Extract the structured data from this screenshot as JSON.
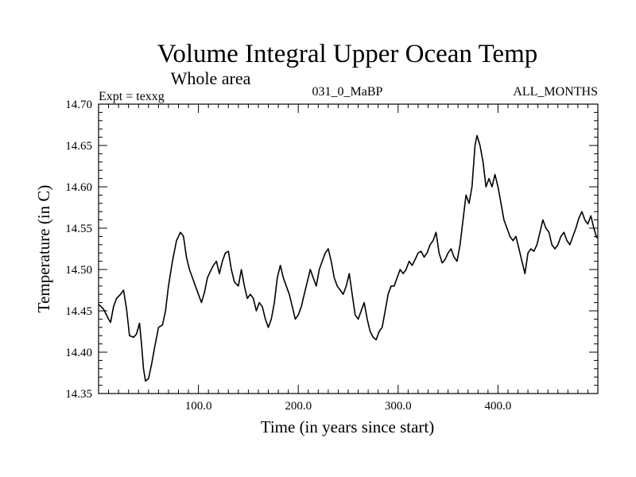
{
  "chart_data": {
    "type": "line",
    "title": "Volume Integral Upper Ocean Temp",
    "subtitle": "Whole area",
    "expt_label": "Expt = texxg",
    "center_label": "031_0_MaBP",
    "right_label": "ALL_MONTHS",
    "xlabel": "Time (in years since start)",
    "ylabel": "Temperature (in C)",
    "xlim": [
      0,
      500
    ],
    "ylim": [
      14.35,
      14.7
    ],
    "x_ticks": [
      100,
      200,
      300,
      400
    ],
    "x_tick_labels": [
      "100.0",
      "200.0",
      "300.0",
      "400.0"
    ],
    "y_ticks": [
      14.35,
      14.4,
      14.45,
      14.5,
      14.55,
      14.6,
      14.65,
      14.7
    ],
    "y_tick_labels": [
      "14.35",
      "14.40",
      "14.45",
      "14.50",
      "14.55",
      "14.60",
      "14.65",
      "14.70"
    ],
    "grid": false,
    "series": [
      {
        "name": "Volume Integral Upper Ocean Temp",
        "color": "#000000",
        "points": [
          [
            0,
            14.458
          ],
          [
            5,
            14.452
          ],
          [
            10,
            14.44
          ],
          [
            12,
            14.436
          ],
          [
            15,
            14.455
          ],
          [
            18,
            14.465
          ],
          [
            22,
            14.47
          ],
          [
            25,
            14.475
          ],
          [
            28,
            14.452
          ],
          [
            31,
            14.42
          ],
          [
            35,
            14.418
          ],
          [
            38,
            14.422
          ],
          [
            41,
            14.435
          ],
          [
            43,
            14.41
          ],
          [
            45,
            14.38
          ],
          [
            47,
            14.365
          ],
          [
            50,
            14.368
          ],
          [
            53,
            14.385
          ],
          [
            56,
            14.405
          ],
          [
            60,
            14.43
          ],
          [
            64,
            14.433
          ],
          [
            67,
            14.45
          ],
          [
            70,
            14.48
          ],
          [
            74,
            14.51
          ],
          [
            78,
            14.535
          ],
          [
            82,
            14.545
          ],
          [
            85,
            14.54
          ],
          [
            88,
            14.515
          ],
          [
            91,
            14.5
          ],
          [
            94,
            14.49
          ],
          [
            97,
            14.48
          ],
          [
            100,
            14.47
          ],
          [
            103,
            14.46
          ],
          [
            106,
            14.472
          ],
          [
            109,
            14.49
          ],
          [
            112,
            14.498
          ],
          [
            115,
            14.505
          ],
          [
            118,
            14.51
          ],
          [
            121,
            14.495
          ],
          [
            124,
            14.51
          ],
          [
            127,
            14.52
          ],
          [
            130,
            14.522
          ],
          [
            133,
            14.5
          ],
          [
            136,
            14.485
          ],
          [
            140,
            14.48
          ],
          [
            143,
            14.5
          ],
          [
            146,
            14.48
          ],
          [
            149,
            14.465
          ],
          [
            152,
            14.47
          ],
          [
            155,
            14.465
          ],
          [
            158,
            14.45
          ],
          [
            161,
            14.46
          ],
          [
            164,
            14.455
          ],
          [
            167,
            14.44
          ],
          [
            170,
            14.43
          ],
          [
            173,
            14.44
          ],
          [
            176,
            14.46
          ],
          [
            179,
            14.49
          ],
          [
            182,
            14.505
          ],
          [
            185,
            14.49
          ],
          [
            188,
            14.48
          ],
          [
            191,
            14.47
          ],
          [
            194,
            14.455
          ],
          [
            197,
            14.44
          ],
          [
            200,
            14.445
          ],
          [
            203,
            14.455
          ],
          [
            206,
            14.47
          ],
          [
            209,
            14.485
          ],
          [
            212,
            14.5
          ],
          [
            215,
            14.49
          ],
          [
            218,
            14.48
          ],
          [
            221,
            14.5
          ],
          [
            224,
            14.51
          ],
          [
            227,
            14.52
          ],
          [
            230,
            14.525
          ],
          [
            233,
            14.51
          ],
          [
            236,
            14.49
          ],
          [
            239,
            14.48
          ],
          [
            242,
            14.475
          ],
          [
            245,
            14.47
          ],
          [
            248,
            14.48
          ],
          [
            251,
            14.495
          ],
          [
            254,
            14.47
          ],
          [
            257,
            14.445
          ],
          [
            260,
            14.44
          ],
          [
            263,
            14.45
          ],
          [
            266,
            14.46
          ],
          [
            269,
            14.44
          ],
          [
            272,
            14.425
          ],
          [
            275,
            14.418
          ],
          [
            278,
            14.415
          ],
          [
            281,
            14.425
          ],
          [
            284,
            14.43
          ],
          [
            287,
            14.45
          ],
          [
            290,
            14.47
          ],
          [
            293,
            14.48
          ],
          [
            296,
            14.48
          ],
          [
            299,
            14.49
          ],
          [
            302,
            14.5
          ],
          [
            305,
            14.495
          ],
          [
            308,
            14.5
          ],
          [
            311,
            14.51
          ],
          [
            314,
            14.505
          ],
          [
            317,
            14.512
          ],
          [
            320,
            14.52
          ],
          [
            323,
            14.522
          ],
          [
            326,
            14.515
          ],
          [
            329,
            14.52
          ],
          [
            332,
            14.53
          ],
          [
            335,
            14.535
          ],
          [
            338,
            14.545
          ],
          [
            341,
            14.52
          ],
          [
            344,
            14.508
          ],
          [
            347,
            14.512
          ],
          [
            350,
            14.52
          ],
          [
            353,
            14.525
          ],
          [
            356,
            14.515
          ],
          [
            359,
            14.51
          ],
          [
            362,
            14.53
          ],
          [
            365,
            14.56
          ],
          [
            368,
            14.59
          ],
          [
            371,
            14.58
          ],
          [
            374,
            14.6
          ],
          [
            377,
            14.65
          ],
          [
            379,
            14.662
          ],
          [
            382,
            14.65
          ],
          [
            385,
            14.63
          ],
          [
            388,
            14.6
          ],
          [
            391,
            14.61
          ],
          [
            394,
            14.6
          ],
          [
            397,
            14.615
          ],
          [
            400,
            14.6
          ],
          [
            403,
            14.58
          ],
          [
            406,
            14.56
          ],
          [
            409,
            14.55
          ],
          [
            412,
            14.54
          ],
          [
            415,
            14.535
          ],
          [
            418,
            14.54
          ],
          [
            421,
            14.525
          ],
          [
            424,
            14.51
          ],
          [
            427,
            14.495
          ],
          [
            430,
            14.52
          ],
          [
            433,
            14.525
          ],
          [
            436,
            14.522
          ],
          [
            439,
            14.53
          ],
          [
            442,
            14.545
          ],
          [
            445,
            14.56
          ],
          [
            448,
            14.55
          ],
          [
            451,
            14.545
          ],
          [
            454,
            14.53
          ],
          [
            457,
            14.525
          ],
          [
            460,
            14.53
          ],
          [
            463,
            14.54
          ],
          [
            466,
            14.545
          ],
          [
            469,
            14.535
          ],
          [
            472,
            14.53
          ],
          [
            475,
            14.54
          ],
          [
            478,
            14.55
          ],
          [
            481,
            14.562
          ],
          [
            484,
            14.57
          ],
          [
            487,
            14.56
          ],
          [
            490,
            14.555
          ],
          [
            493,
            14.565
          ],
          [
            496,
            14.55
          ],
          [
            499,
            14.538
          ]
        ]
      }
    ]
  }
}
